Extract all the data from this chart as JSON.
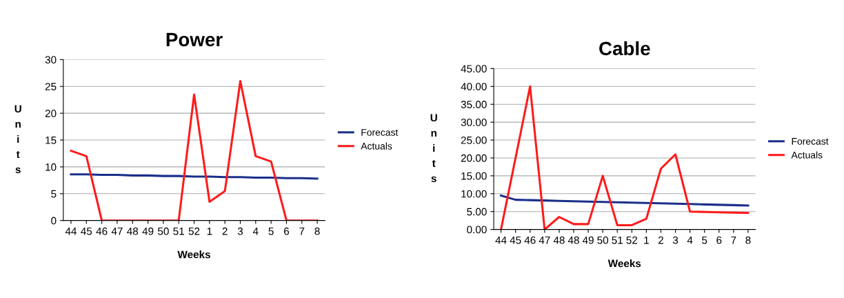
{
  "chart_data": [
    {
      "type": "line",
      "title": "Power",
      "xlabel": "Weeks",
      "ylabel": "U\nn\ni\nt\ns",
      "categories": [
        "44",
        "45",
        "46",
        "47",
        "48",
        "49",
        "50",
        "51",
        "52",
        "1",
        "2",
        "3",
        "4",
        "5",
        "6",
        "7",
        "8"
      ],
      "series": [
        {
          "name": "Forecast",
          "color": "#1a2f8a",
          "values": [
            8.6,
            8.6,
            8.5,
            8.5,
            8.4,
            8.4,
            8.3,
            8.3,
            8.2,
            8.2,
            8.1,
            8.1,
            8.0,
            8.0,
            7.9,
            7.9,
            7.8
          ]
        },
        {
          "name": "Actuals",
          "color": "#ff1a1a",
          "values": [
            13,
            12,
            0,
            0,
            0,
            0,
            0,
            0,
            23.5,
            3.5,
            5.5,
            26,
            12,
            11,
            0,
            0,
            0
          ]
        }
      ],
      "ylim": [
        0,
        30
      ],
      "yticks": [
        0,
        5,
        10,
        15,
        20,
        25,
        30
      ],
      "grid": "y",
      "legend": "center right",
      "marker": "none",
      "line_style": "solid"
    },
    {
      "type": "line",
      "title": "Cable",
      "xlabel": "Weeks",
      "ylabel": "U\nn\ni\nt\ns",
      "categories": [
        "44",
        "45",
        "46",
        "47",
        "48",
        "48",
        "49",
        "50",
        "51",
        "52",
        "1",
        "2",
        "3",
        "4",
        "5",
        "6",
        "7",
        "8"
      ],
      "series": [
        {
          "name": "Forecast",
          "color": "#1a2f8a",
          "values": [
            9.5,
            8.3,
            8.2,
            8.1,
            8.0,
            7.9,
            7.8,
            7.7,
            7.6,
            7.5,
            7.4,
            7.3,
            7.2,
            7.1,
            7.0,
            6.9,
            6.8,
            6.7
          ]
        },
        {
          "name": "Actuals",
          "color": "#ff1a1a",
          "values": [
            0,
            20,
            40,
            0,
            3.5,
            1.5,
            1.5,
            15,
            1.2,
            1.2,
            3,
            17,
            21,
            5,
            4.9,
            4.8,
            4.7,
            4.6
          ]
        }
      ],
      "ylim": [
        0,
        45
      ],
      "yticks": [
        {
          "value": 0,
          "label": "0.00"
        },
        {
          "value": 5,
          "label": "5.00"
        },
        {
          "value": 10,
          "label": "10.00"
        },
        {
          "value": 15,
          "label": "15.00"
        },
        {
          "value": 20,
          "label": "20.00"
        },
        {
          "value": 25,
          "label": "25.00"
        },
        {
          "value": 30,
          "label": "30.00"
        },
        {
          "value": 35,
          "label": "35.00"
        },
        {
          "value": 40,
          "label": "40.00"
        },
        {
          "value": 45,
          "label": "45.00"
        }
      ],
      "grid": "y",
      "legend": "center right",
      "marker": "none",
      "line_style": "solid"
    }
  ]
}
